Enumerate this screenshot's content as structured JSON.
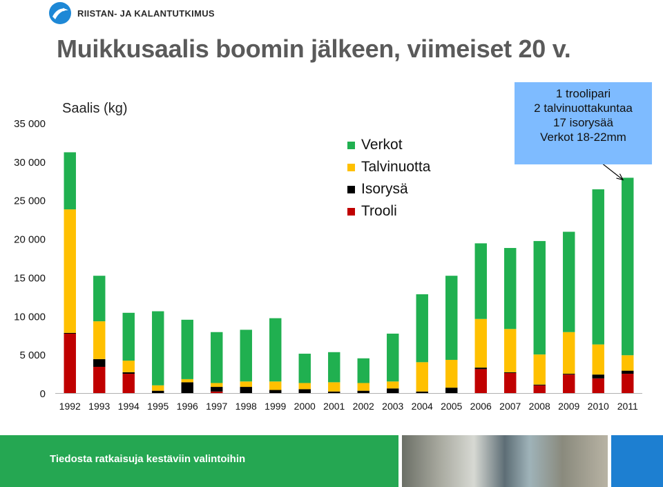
{
  "logo": {
    "text": "RIISTAN- JA KALANTUTKIMUS",
    "mark_color": "#1e88d6"
  },
  "title": "Muikkusaalis boomin jälkeen, viimeiset 20 v.",
  "annotation": {
    "lines": [
      "1 troolipari",
      "2 talvinuottakuntaa",
      "17 isorysää",
      "Verkot 18-22mm"
    ]
  },
  "footer": {
    "text": "Tiedosta ratkaisuja kestäviin valintoihin",
    "green": "#25a752",
    "blue": "#1d7fd1"
  },
  "chart_data": {
    "type": "bar",
    "stacked": true,
    "title": "",
    "ylabel": "Saalis (kg)",
    "xlabel": "",
    "ylim": [
      0,
      35000
    ],
    "yticks": [
      0,
      5000,
      10000,
      15000,
      20000,
      25000,
      30000,
      35000
    ],
    "ytick_labels": [
      "0",
      "5 000",
      "10 000",
      "15 000",
      "20 000",
      "25 000",
      "30 000",
      "35 000"
    ],
    "grid": false,
    "legend_position": "top-center",
    "categories": [
      "1992",
      "1993",
      "1994",
      "1995",
      "1996",
      "1997",
      "1998",
      "1999",
      "2000",
      "2001",
      "2002",
      "2003",
      "2004",
      "2005",
      "2006",
      "2007",
      "2008",
      "2009",
      "2010",
      "2011"
    ],
    "series": [
      {
        "name": "Trooli",
        "color": "#c00000",
        "values": [
          7700,
          3400,
          2500,
          0,
          0,
          200,
          0,
          0,
          0,
          0,
          0,
          0,
          0,
          0,
          3100,
          2600,
          1000,
          2400,
          1900,
          2500
        ]
      },
      {
        "name": "Isorysä",
        "color": "#000000",
        "values": [
          100,
          1000,
          200,
          300,
          1400,
          600,
          800,
          400,
          500,
          200,
          300,
          600,
          200,
          700,
          200,
          100,
          100,
          100,
          500,
          400
        ]
      },
      {
        "name": "Talvinuotta",
        "color": "#ffc000",
        "values": [
          16000,
          4900,
          1500,
          700,
          400,
          500,
          700,
          1100,
          800,
          1200,
          1000,
          900,
          3800,
          3600,
          6300,
          5600,
          3900,
          5400,
          3900,
          2000
        ]
      },
      {
        "name": "Verkot",
        "color": "#20b050",
        "values": [
          7400,
          5900,
          6200,
          9600,
          7700,
          6600,
          6700,
          8200,
          3800,
          3900,
          3200,
          6200,
          8800,
          10900,
          9800,
          10500,
          14700,
          13000,
          20100,
          23000
        ]
      }
    ],
    "legend_order": [
      "Verkot",
      "Talvinuotta",
      "Isorysä",
      "Trooli"
    ]
  }
}
